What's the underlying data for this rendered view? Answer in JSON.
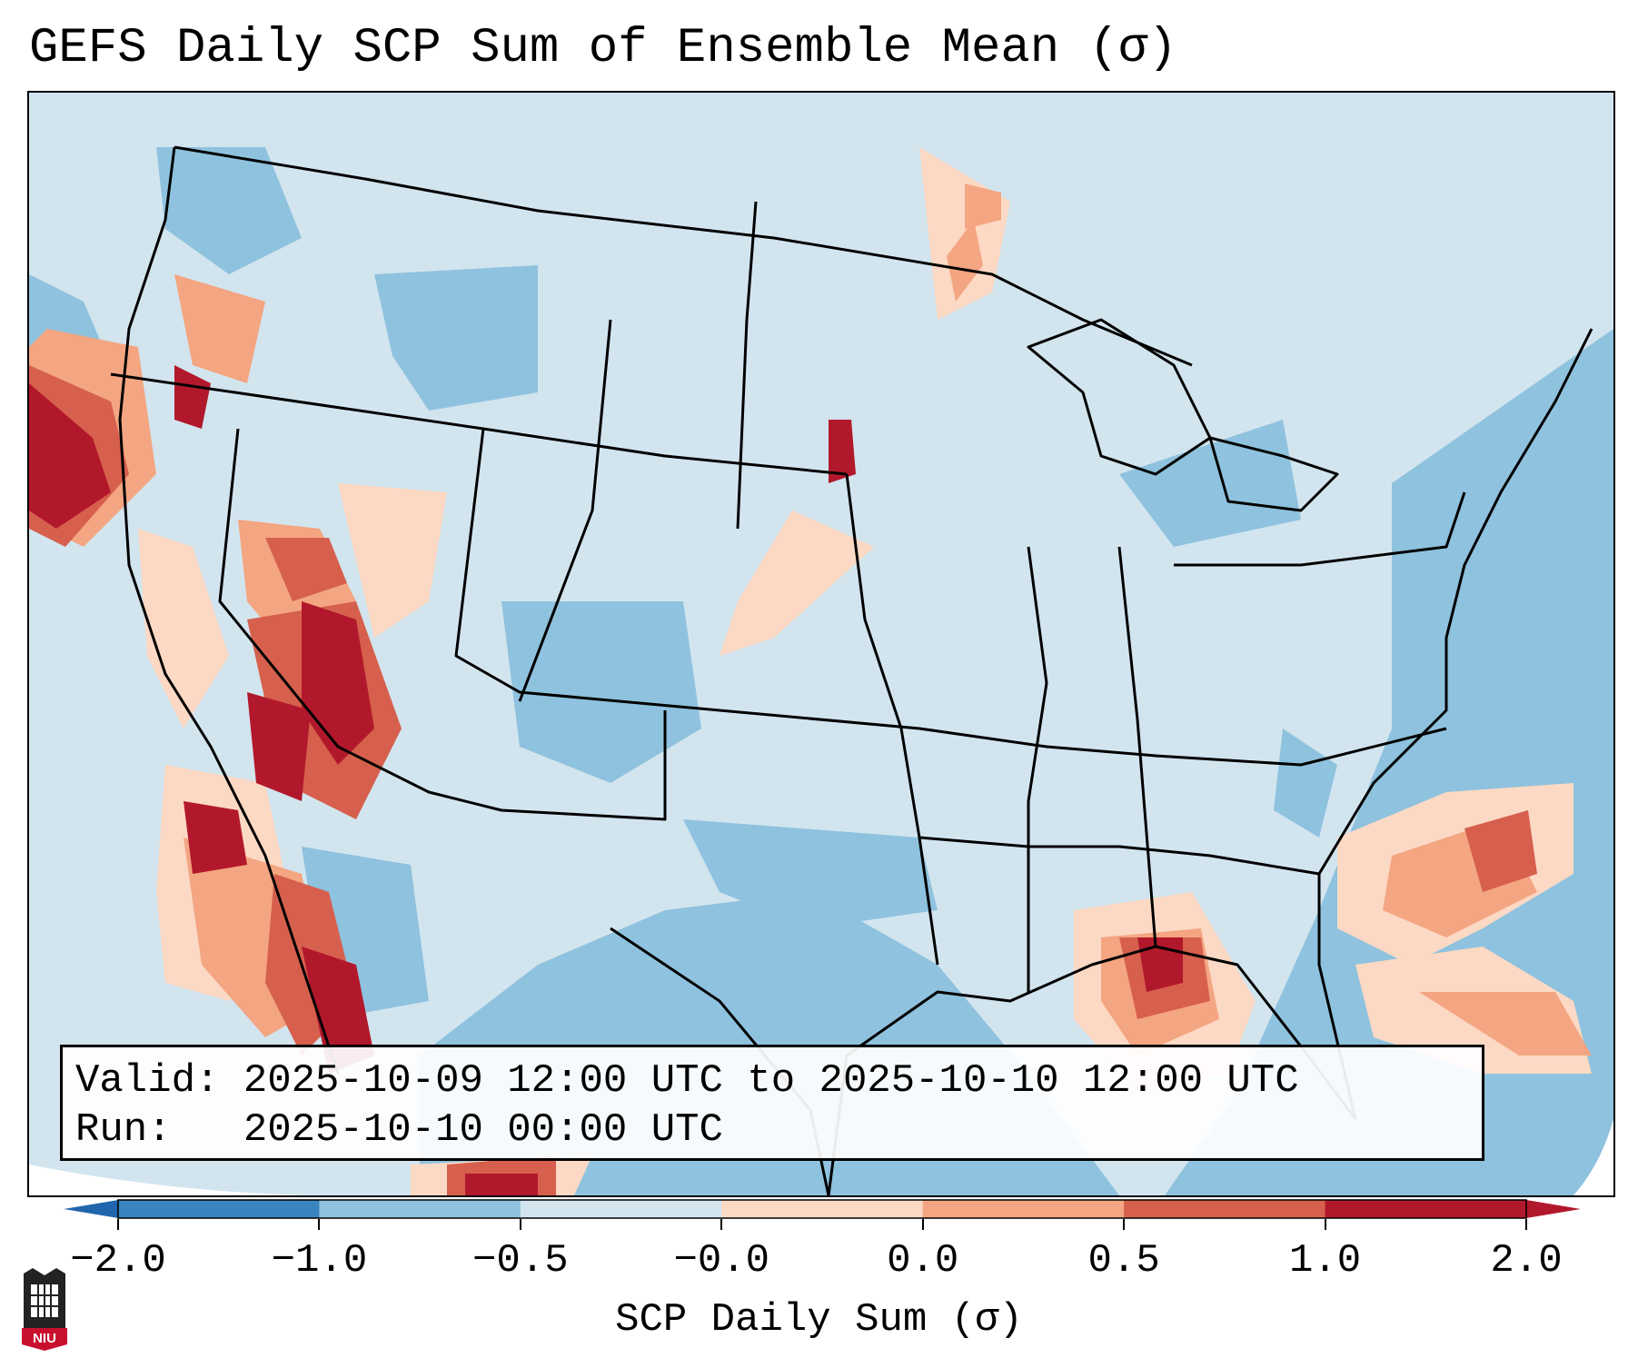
{
  "title": "GEFS Daily SCP Sum of Ensemble Mean (σ)",
  "info": {
    "valid_line": "Valid: 2025-10-09 12:00 UTC to 2025-10-10 12:00 UTC",
    "run_line": "Run:   2025-10-10 00:00 UTC"
  },
  "colorbar": {
    "label": "SCP Daily Sum (σ)",
    "ticks": [
      "−2.0",
      "−1.0",
      "−0.5",
      "−0.0",
      "0.0",
      "0.5",
      "1.0",
      "2.0"
    ],
    "colors": [
      "#3a84bf",
      "#8fc2de",
      "#d2e5ef",
      "#fcd9c4",
      "#f4a582",
      "#d6604d",
      "#b2182b"
    ],
    "extend_low_color": "#2166ac",
    "extend_high_color": "#b2182b"
  },
  "logo": {
    "text": "NIU"
  }
}
